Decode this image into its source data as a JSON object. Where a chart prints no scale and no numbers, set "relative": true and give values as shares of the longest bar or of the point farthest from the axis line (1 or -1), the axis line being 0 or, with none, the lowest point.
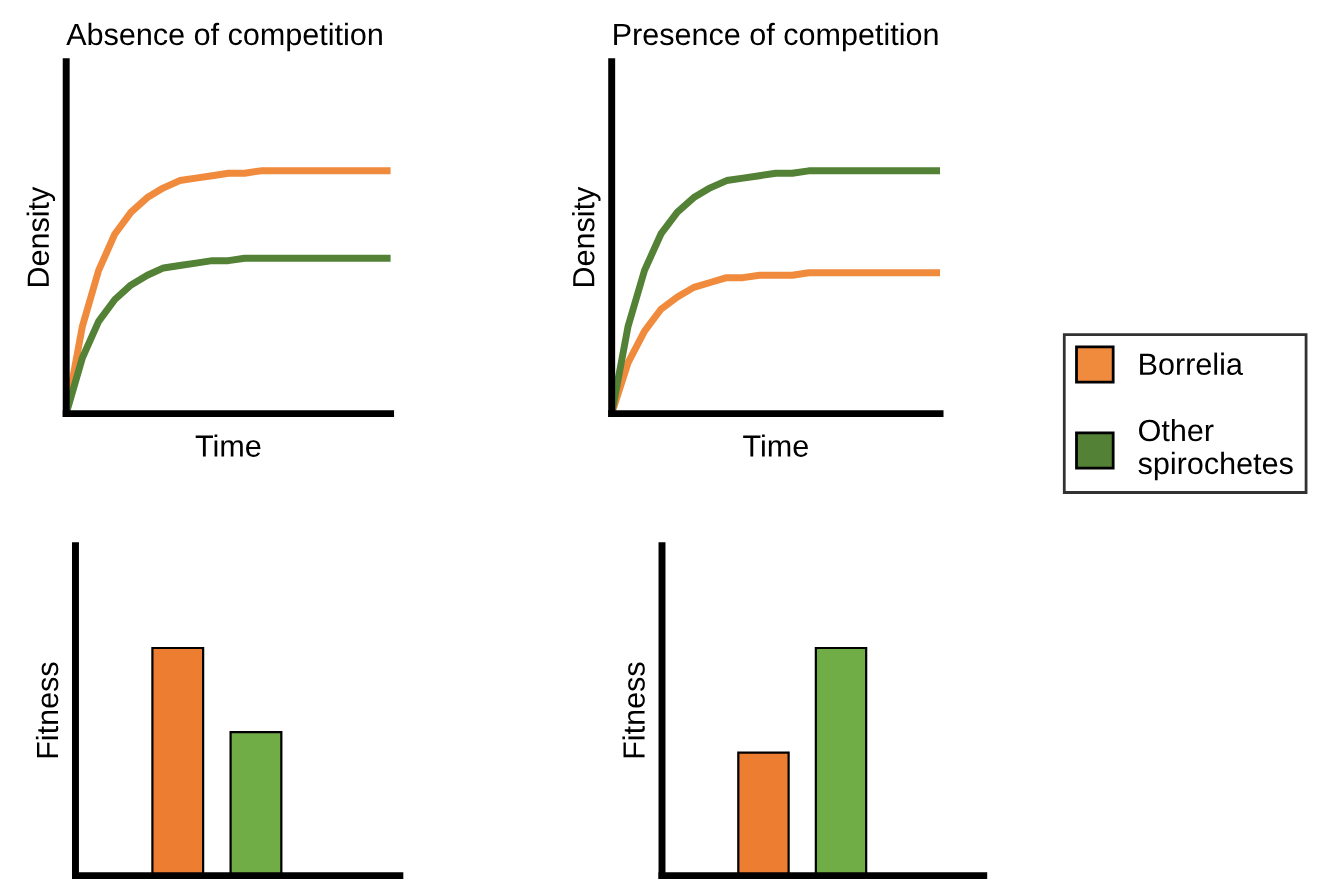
{
  "chart_data": [
    {
      "type": "line",
      "title": "Absence of competition",
      "xlabel": "Time",
      "ylabel": "Density",
      "relative": true,
      "legend": "right",
      "categories": [
        null,
        null,
        null,
        null,
        null,
        null,
        null,
        null,
        null,
        null,
        null,
        null,
        null,
        null,
        null,
        null,
        null,
        null,
        null,
        null,
        null
      ],
      "series": [
        {
          "name": "Borrelia",
          "color": "#f08a3c",
          "values": [
            0,
            0.36,
            0.59,
            0.74,
            0.83,
            0.89,
            0.93,
            0.96,
            0.97,
            0.98,
            0.99,
            0.99,
            1,
            1,
            1,
            1,
            1,
            1,
            1,
            1,
            1
          ]
        },
        {
          "name": "Other\nspirochetes",
          "color": "#538135",
          "values": [
            0,
            0.23,
            0.38,
            0.47,
            0.53,
            0.57,
            0.6,
            0.61,
            0.62,
            0.63,
            0.63,
            0.64,
            0.64,
            0.64,
            0.64,
            0.64,
            0.64,
            0.64,
            0.64,
            0.64,
            0.64
          ]
        }
      ]
    },
    {
      "type": "line",
      "title": "Presence of competition",
      "xlabel": "Time",
      "ylabel": "Density",
      "relative": true,
      "categories": [
        null,
        null,
        null,
        null,
        null,
        null,
        null,
        null,
        null,
        null,
        null,
        null,
        null,
        null,
        null,
        null,
        null,
        null,
        null,
        null,
        null
      ],
      "series": [
        {
          "color": "#f08a3c",
          "values": [
            0,
            0.21,
            0.34,
            0.43,
            0.48,
            0.52,
            0.54,
            0.56,
            0.56,
            0.57,
            0.57,
            0.57,
            0.58,
            0.58,
            0.58,
            0.58,
            0.58,
            0.58,
            0.58,
            0.58,
            0.58
          ]
        },
        {
          "color": "#538135",
          "values": [
            0,
            0.36,
            0.59,
            0.74,
            0.83,
            0.89,
            0.93,
            0.96,
            0.97,
            0.98,
            0.99,
            0.99,
            1,
            1,
            1,
            1,
            1,
            1,
            1,
            1,
            1
          ]
        }
      ]
    },
    {
      "type": "bar",
      "ylabel": "Fitness",
      "relative": true,
      "categories": [
        null
      ],
      "series": [
        {
          "color": "#ed7d31",
          "values": [
            1
          ]
        },
        {
          "color": "#70ad47",
          "values": [
            0.63
          ]
        }
      ]
    },
    {
      "type": "bar",
      "ylabel": "Fitness",
      "relative": true,
      "categories": [
        null
      ],
      "series": [
        {
          "color": "#ed7d31",
          "values": [
            0.54
          ]
        },
        {
          "color": "#70ad47",
          "values": [
            1
          ]
        }
      ]
    }
  ]
}
